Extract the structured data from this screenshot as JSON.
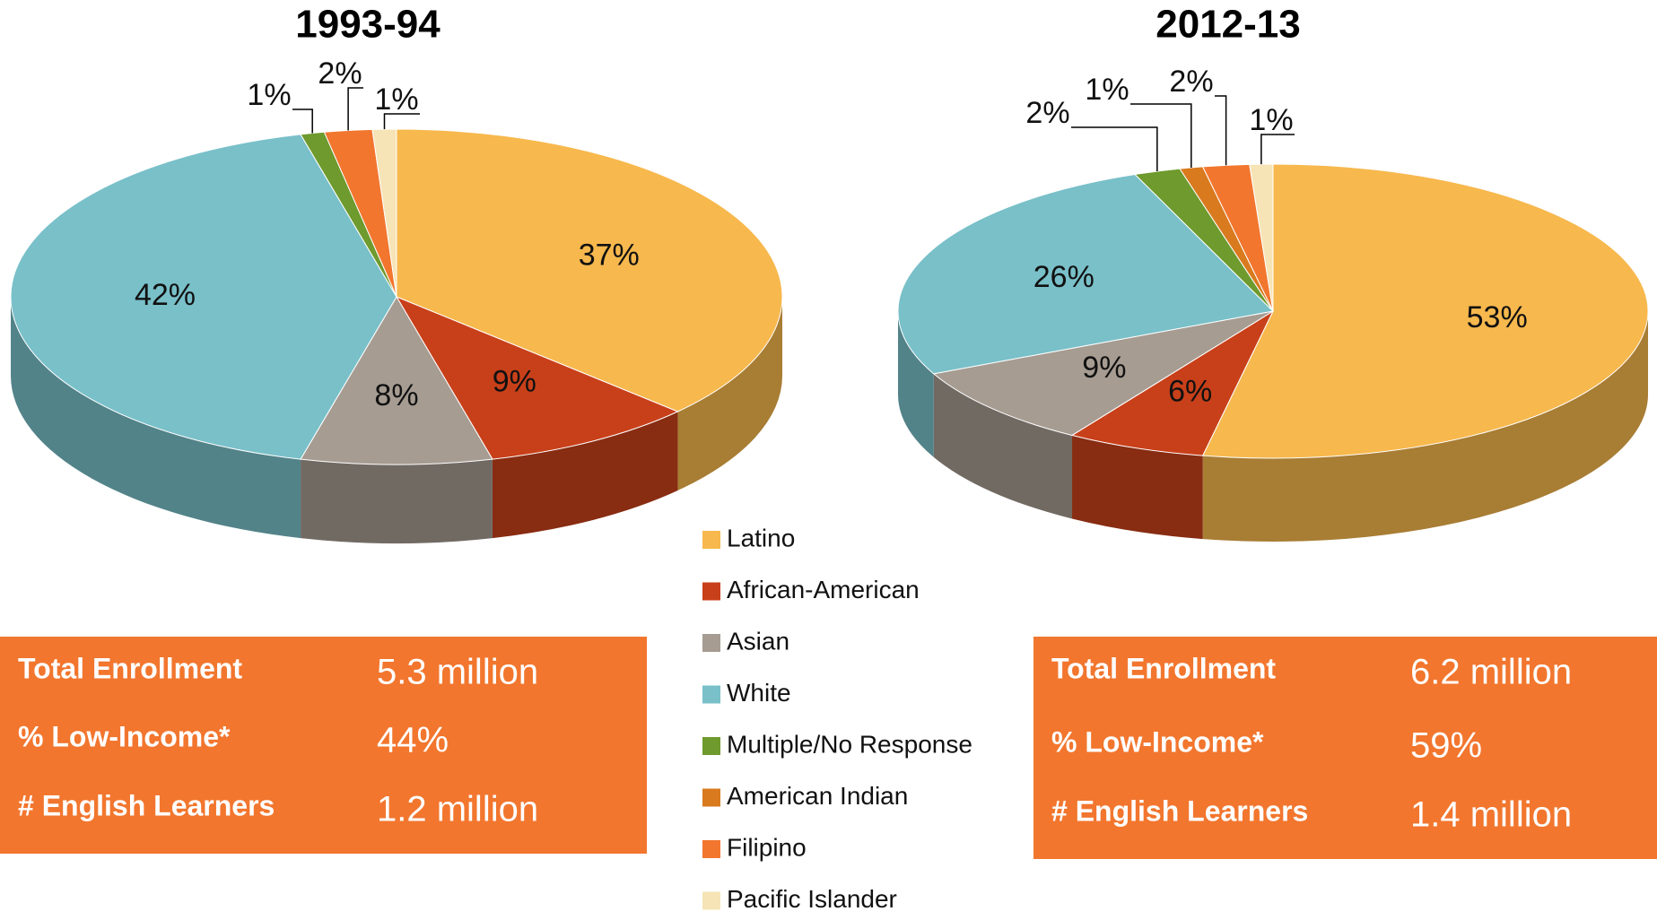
{
  "chart_data": [
    {
      "type": "pie",
      "title": "1993-94",
      "categories": [
        "Latino",
        "African-American",
        "Asian",
        "White",
        "Multiple/No Response",
        "American Indian",
        "Filipino",
        "Pacific Islander"
      ],
      "values": [
        37,
        9,
        8,
        42,
        1,
        0,
        2,
        1
      ],
      "value_labels": [
        "37%",
        "9%",
        "8%",
        "42%",
        "1%",
        null,
        "2%",
        "1%"
      ],
      "colors": [
        "#f7b84d",
        "#c8401a",
        "#a69c92",
        "#79c0c9",
        "#6e9a2e",
        "#d97a1f",
        "#f2762e",
        "#f6e4b6"
      ],
      "summary": [
        {
          "label": "Total Enrollment",
          "value": "5.3 million"
        },
        {
          "label": "% Low-Income*",
          "value": "44%"
        },
        {
          "label": "# English Learners",
          "value": "1.2 million"
        }
      ]
    },
    {
      "type": "pie",
      "title": "2012-13",
      "categories": [
        "Latino",
        "African-American",
        "Asian",
        "White",
        "Multiple/No Response",
        "American Indian",
        "Filipino",
        "Pacific Islander"
      ],
      "values": [
        53,
        6,
        9,
        26,
        2,
        1,
        2,
        1
      ],
      "value_labels": [
        "53%",
        "6%",
        "9%",
        "26%",
        "2%",
        "1%",
        "2%",
        "1%"
      ],
      "colors": [
        "#f7b84d",
        "#c8401a",
        "#a69c92",
        "#79c0c9",
        "#6e9a2e",
        "#d97a1f",
        "#f2762e",
        "#f6e4b6"
      ],
      "summary": [
        {
          "label": "Total Enrollment",
          "value": "6.2 million"
        },
        {
          "label": "% Low-Income*",
          "value": "59%"
        },
        {
          "label": "# English Learners",
          "value": "1.4 million"
        }
      ]
    }
  ]
}
